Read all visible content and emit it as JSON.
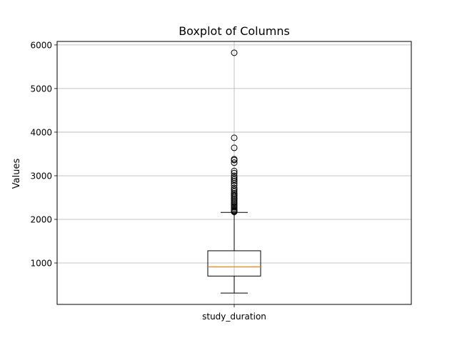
{
  "chart_data": {
    "type": "boxplot",
    "title": "Boxplot of Columns",
    "xlabel": "",
    "ylabel": "Values",
    "categories": [
      "study_duration"
    ],
    "ylim": [
      50,
      6080
    ],
    "yticks": [
      1000,
      2000,
      3000,
      4000,
      5000,
      6000
    ],
    "grid": true,
    "colors": {
      "box": "#000000",
      "median": "#ff7f0e",
      "grid": "#b0b0b0"
    },
    "boxes": [
      {
        "name": "study_duration",
        "whisker_low": 310,
        "q1": 700,
        "median": 910,
        "q3": 1280,
        "whisker_high": 2160,
        "outliers": [
          2170,
          2190,
          2200,
          2220,
          2250,
          2280,
          2300,
          2330,
          2360,
          2390,
          2420,
          2450,
          2480,
          2510,
          2540,
          2570,
          2600,
          2640,
          2680,
          2720,
          2780,
          2830,
          2880,
          2920,
          2960,
          3000,
          3060,
          3110,
          3300,
          3360,
          3380,
          3640,
          3870,
          5820
        ]
      }
    ]
  }
}
